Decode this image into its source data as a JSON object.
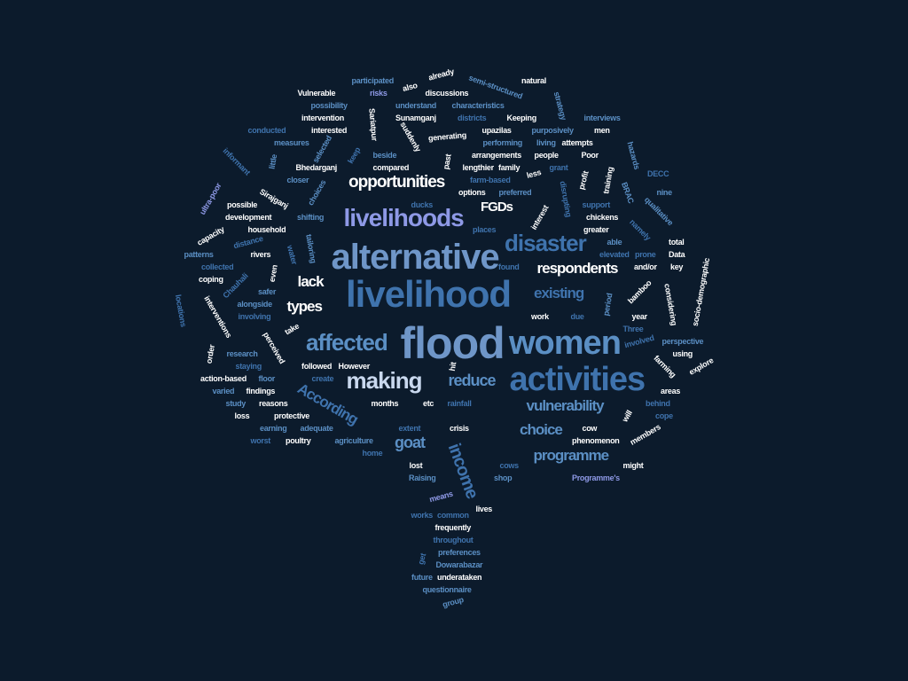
{
  "palette": {
    "white": "#ffffff",
    "light": "#c9d8ee",
    "lavender": "#8e99e6",
    "medium": "#6f96c8",
    "steel": "#5b8fc4",
    "dark": "#3f73ad",
    "background": "#0c1b2c"
  },
  "words": [
    {
      "text": "flood",
      "c": "medium"
    },
    {
      "text": "women",
      "c": "steel"
    },
    {
      "text": "livelihood",
      "c": "dark"
    },
    {
      "text": "activities",
      "c": "dark"
    },
    {
      "text": "alternative",
      "c": "medium"
    },
    {
      "text": "livelihoods",
      "c": "lavender"
    },
    {
      "text": "disaster",
      "c": "dark"
    },
    {
      "text": "affected",
      "c": "steel"
    },
    {
      "text": "making",
      "c": "light"
    },
    {
      "text": "opportunities",
      "c": "white"
    },
    {
      "text": "respondents",
      "c": "white"
    },
    {
      "text": "existing",
      "c": "dark"
    },
    {
      "text": "vulnerability",
      "c": "steel"
    },
    {
      "text": "reduce",
      "c": "steel"
    },
    {
      "text": "programme",
      "c": "steel"
    },
    {
      "text": "choice",
      "c": "steel"
    },
    {
      "text": "According",
      "c": "dark"
    },
    {
      "text": "income",
      "c": "dark"
    },
    {
      "text": "goat",
      "c": "steel"
    },
    {
      "text": "lack",
      "c": "white"
    },
    {
      "text": "types",
      "c": "white"
    },
    {
      "text": "FGDs",
      "c": "white"
    },
    {
      "text": "natural",
      "c": "white"
    },
    {
      "text": "participated",
      "c": "steel"
    },
    {
      "text": "already",
      "c": "white"
    },
    {
      "text": "semi-structured",
      "c": "steel"
    },
    {
      "text": "Vulnerable",
      "c": "white"
    },
    {
      "text": "risks",
      "c": "lavender"
    },
    {
      "text": "also",
      "c": "white"
    },
    {
      "text": "discussions",
      "c": "white"
    },
    {
      "text": "possibility",
      "c": "steel"
    },
    {
      "text": "understand",
      "c": "steel"
    },
    {
      "text": "characteristics",
      "c": "steel"
    },
    {
      "text": "strategy",
      "c": "steel"
    },
    {
      "text": "intervention",
      "c": "white"
    },
    {
      "text": "Sariatpur",
      "c": "white"
    },
    {
      "text": "Sunamganj",
      "c": "white"
    },
    {
      "text": "districts",
      "c": "dark"
    },
    {
      "text": "Keeping",
      "c": "white"
    },
    {
      "text": "interviews",
      "c": "steel"
    },
    {
      "text": "conducted",
      "c": "dark"
    },
    {
      "text": "interested",
      "c": "white"
    },
    {
      "text": "suddenly",
      "c": "white"
    },
    {
      "text": "upazilas",
      "c": "white"
    },
    {
      "text": "purposively",
      "c": "steel"
    },
    {
      "text": "men",
      "c": "white"
    },
    {
      "text": "measures",
      "c": "steel"
    },
    {
      "text": "selected",
      "c": "steel"
    },
    {
      "text": "generating",
      "c": "white"
    },
    {
      "text": "performing",
      "c": "steel"
    },
    {
      "text": "living",
      "c": "steel"
    },
    {
      "text": "attempts",
      "c": "white"
    },
    {
      "text": "hazards",
      "c": "steel"
    },
    {
      "text": "informant",
      "c": "dark"
    },
    {
      "text": "little",
      "c": "steel"
    },
    {
      "text": "keep",
      "c": "dark"
    },
    {
      "text": "beside",
      "c": "steel"
    },
    {
      "text": "arrangements",
      "c": "white"
    },
    {
      "text": "people",
      "c": "white"
    },
    {
      "text": "Poor",
      "c": "white"
    },
    {
      "text": "Bhedarganj",
      "c": "white"
    },
    {
      "text": "compared",
      "c": "white"
    },
    {
      "text": "past",
      "c": "white"
    },
    {
      "text": "lengthier",
      "c": "white"
    },
    {
      "text": "family",
      "c": "white"
    },
    {
      "text": "grant",
      "c": "dark"
    },
    {
      "text": "less",
      "c": "white"
    },
    {
      "text": "profit",
      "c": "white"
    },
    {
      "text": "training",
      "c": "white"
    },
    {
      "text": "DECC",
      "c": "dark"
    },
    {
      "text": "closer",
      "c": "steel"
    },
    {
      "text": "farm-based",
      "c": "dark"
    },
    {
      "text": "ultra-poor",
      "c": "lavender"
    },
    {
      "text": "Sirajganj",
      "c": "white"
    },
    {
      "text": "choices",
      "c": "steel"
    },
    {
      "text": "options",
      "c": "white"
    },
    {
      "text": "preferred",
      "c": "steel"
    },
    {
      "text": "disrupting",
      "c": "dark"
    },
    {
      "text": "BRAC",
      "c": "steel"
    },
    {
      "text": "nine",
      "c": "steel"
    },
    {
      "text": "possible",
      "c": "white"
    },
    {
      "text": "ducks",
      "c": "dark"
    },
    {
      "text": "support",
      "c": "dark"
    },
    {
      "text": "qualitative",
      "c": "steel"
    },
    {
      "text": "development",
      "c": "white"
    },
    {
      "text": "shifting",
      "c": "steel"
    },
    {
      "text": "interest",
      "c": "white"
    },
    {
      "text": "chickens",
      "c": "white"
    },
    {
      "text": "household",
      "c": "white"
    },
    {
      "text": "places",
      "c": "dark"
    },
    {
      "text": "greater",
      "c": "white"
    },
    {
      "text": "namely",
      "c": "dark"
    },
    {
      "text": "capacity",
      "c": "white"
    },
    {
      "text": "distance",
      "c": "dark"
    },
    {
      "text": "tailoring",
      "c": "steel"
    },
    {
      "text": "able",
      "c": "steel"
    },
    {
      "text": "total",
      "c": "white"
    },
    {
      "text": "patterns",
      "c": "steel"
    },
    {
      "text": "rivers",
      "c": "white"
    },
    {
      "text": "elevated",
      "c": "dark"
    },
    {
      "text": "prone",
      "c": "dark"
    },
    {
      "text": "Data",
      "c": "white"
    },
    {
      "text": "collected",
      "c": "dark"
    },
    {
      "text": "water",
      "c": "dark"
    },
    {
      "text": "found",
      "c": "dark"
    },
    {
      "text": "and/or",
      "c": "white"
    },
    {
      "text": "key",
      "c": "white"
    },
    {
      "text": "coping",
      "c": "white"
    },
    {
      "text": "even",
      "c": "white"
    },
    {
      "text": "Chauhali",
      "c": "dark"
    },
    {
      "text": "socio-demographic",
      "c": "white"
    },
    {
      "text": "safer",
      "c": "steel"
    },
    {
      "text": "bamboo",
      "c": "white"
    },
    {
      "text": "considering",
      "c": "white"
    },
    {
      "text": "locations",
      "c": "dark"
    },
    {
      "text": "alongside",
      "c": "steel"
    },
    {
      "text": "period",
      "c": "steel"
    },
    {
      "text": "involving",
      "c": "dark"
    },
    {
      "text": "interventions",
      "c": "white"
    },
    {
      "text": "work",
      "c": "white"
    },
    {
      "text": "due",
      "c": "dark"
    },
    {
      "text": "year",
      "c": "white"
    },
    {
      "text": "take",
      "c": "white"
    },
    {
      "text": "Three",
      "c": "dark"
    },
    {
      "text": "involved",
      "c": "dark"
    },
    {
      "text": "perceived",
      "c": "white"
    },
    {
      "text": "order",
      "c": "white"
    },
    {
      "text": "perspective",
      "c": "steel"
    },
    {
      "text": "research",
      "c": "steel"
    },
    {
      "text": "using",
      "c": "white"
    },
    {
      "text": "staying",
      "c": "dark"
    },
    {
      "text": "followed",
      "c": "white"
    },
    {
      "text": "However",
      "c": "white"
    },
    {
      "text": "hit",
      "c": "white"
    },
    {
      "text": "farming",
      "c": "white"
    },
    {
      "text": "explore",
      "c": "white"
    },
    {
      "text": "action-based",
      "c": "white"
    },
    {
      "text": "floor",
      "c": "steel"
    },
    {
      "text": "create",
      "c": "dark"
    },
    {
      "text": "areas",
      "c": "white"
    },
    {
      "text": "varied",
      "c": "steel"
    },
    {
      "text": "findings",
      "c": "white"
    },
    {
      "text": "behind",
      "c": "dark"
    },
    {
      "text": "study",
      "c": "steel"
    },
    {
      "text": "reasons",
      "c": "white"
    },
    {
      "text": "months",
      "c": "white"
    },
    {
      "text": "etc",
      "c": "white"
    },
    {
      "text": "rainfall",
      "c": "dark"
    },
    {
      "text": "will",
      "c": "white"
    },
    {
      "text": "cope",
      "c": "dark"
    },
    {
      "text": "loss",
      "c": "white"
    },
    {
      "text": "protective",
      "c": "white"
    },
    {
      "text": "earning",
      "c": "steel"
    },
    {
      "text": "adequate",
      "c": "steel"
    },
    {
      "text": "extent",
      "c": "dark"
    },
    {
      "text": "crisis",
      "c": "white"
    },
    {
      "text": "cow",
      "c": "white"
    },
    {
      "text": "members",
      "c": "white"
    },
    {
      "text": "worst",
      "c": "dark"
    },
    {
      "text": "poultry",
      "c": "white"
    },
    {
      "text": "agriculture",
      "c": "steel"
    },
    {
      "text": "phenomenon",
      "c": "white"
    },
    {
      "text": "home",
      "c": "dark"
    },
    {
      "text": "lost",
      "c": "white"
    },
    {
      "text": "cows",
      "c": "dark"
    },
    {
      "text": "might",
      "c": "white"
    },
    {
      "text": "Raising",
      "c": "steel"
    },
    {
      "text": "shop",
      "c": "steel"
    },
    {
      "text": "Programme's",
      "c": "lavender"
    },
    {
      "text": "means",
      "c": "lavender"
    },
    {
      "text": "lives",
      "c": "white"
    },
    {
      "text": "works",
      "c": "dark"
    },
    {
      "text": "common",
      "c": "dark"
    },
    {
      "text": "frequently",
      "c": "white"
    },
    {
      "text": "throughout",
      "c": "dark"
    },
    {
      "text": "get",
      "c": "dark"
    },
    {
      "text": "preferences",
      "c": "steel"
    },
    {
      "text": "Dowarabazar",
      "c": "steel"
    },
    {
      "text": "future",
      "c": "steel"
    },
    {
      "text": "underataken",
      "c": "white"
    },
    {
      "text": "questionnaire",
      "c": "steel"
    },
    {
      "text": "group",
      "c": "steel"
    }
  ]
}
